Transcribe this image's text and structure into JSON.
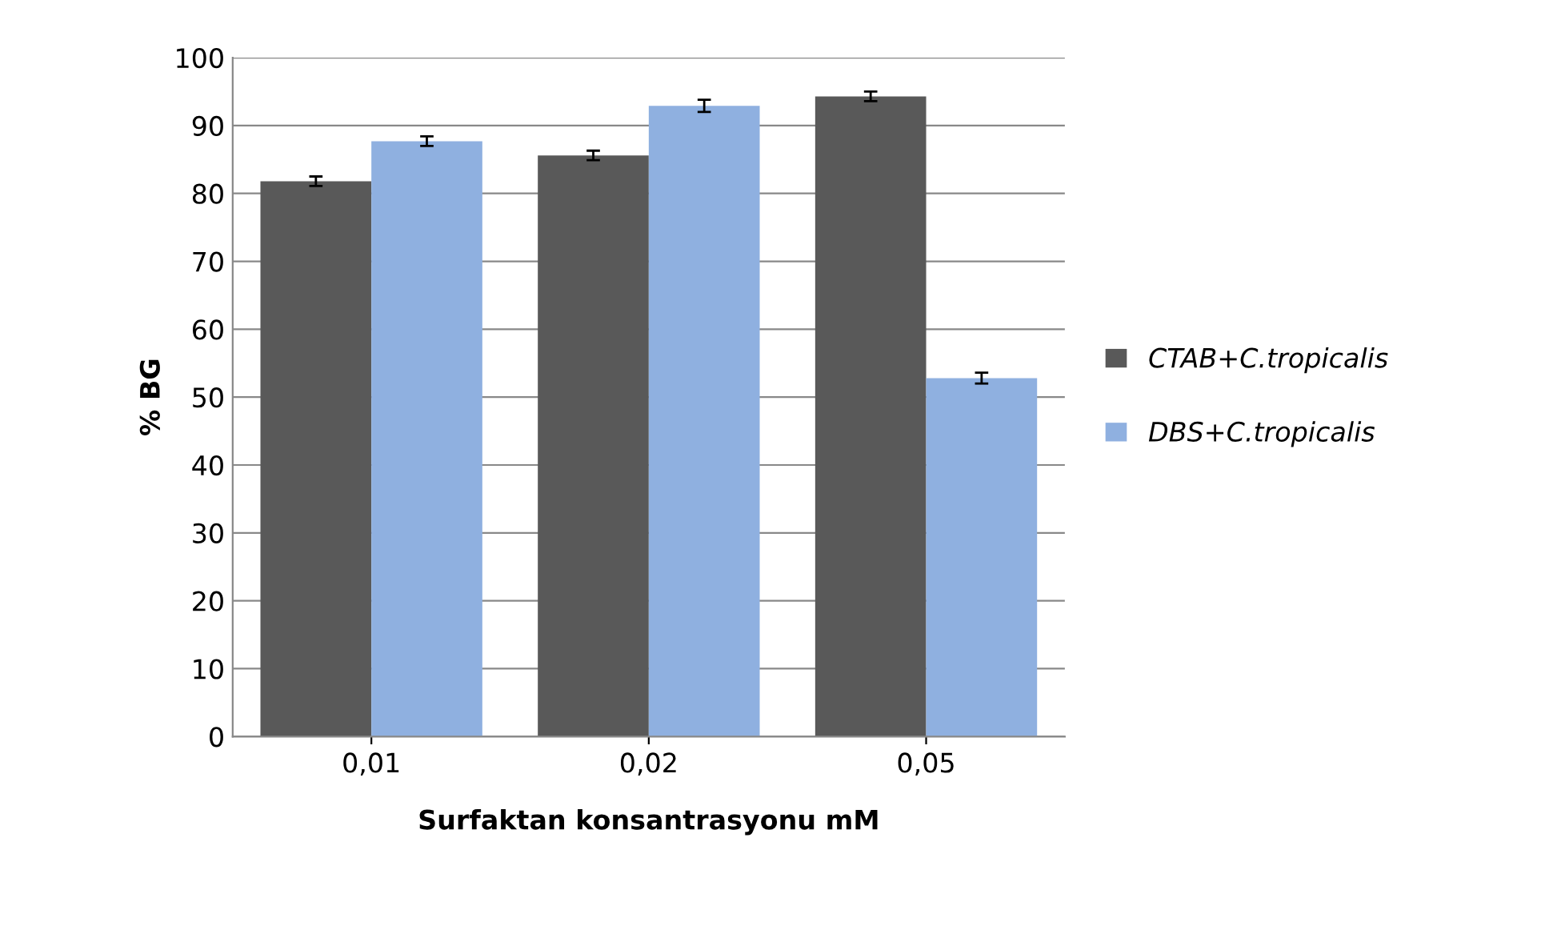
{
  "chart_data": {
    "type": "bar",
    "xlabel": "Surfaktan konsantrasyonu mM",
    "ylabel": "% BG",
    "categories": [
      "0,01",
      "0,02",
      "0,05"
    ],
    "series": [
      {
        "name": "CTAB+C.tropicalis",
        "color": "#595959",
        "values": [
          81.8,
          85.6,
          94.3
        ],
        "errors": [
          0.7,
          0.7,
          0.7
        ]
      },
      {
        "name": "DBS+C.tropicalis",
        "color": "#8fb0e0",
        "values": [
          87.7,
          92.9,
          52.8
        ],
        "errors": [
          0.7,
          0.9,
          0.8
        ]
      }
    ],
    "ylim": [
      0,
      100
    ],
    "yticks": [
      0,
      10,
      20,
      30,
      40,
      50,
      60,
      70,
      80,
      90,
      100
    ],
    "grid": "y",
    "legend": "right"
  }
}
